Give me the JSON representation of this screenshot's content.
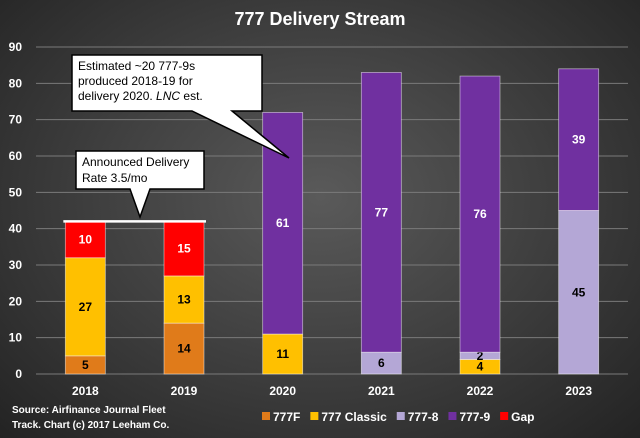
{
  "chart_data": {
    "type": "bar",
    "stacked": true,
    "title": "777 Delivery Stream",
    "categories": [
      "2018",
      "2019",
      "2020",
      "2021",
      "2022",
      "2023"
    ],
    "ylim": [
      0,
      90
    ],
    "yticks": [
      0,
      10,
      20,
      30,
      40,
      50,
      60,
      70,
      80,
      90
    ],
    "grid": true,
    "legend_position": "bottom",
    "series": [
      {
        "name": "777F",
        "color": "#e07b1a",
        "label_color": "#000000",
        "values": [
          5,
          14,
          0,
          0,
          0,
          0
        ]
      },
      {
        "name": "777 Classic",
        "color": "#ffc000",
        "label_color": "#000000",
        "values": [
          27,
          13,
          11,
          0,
          4,
          0
        ]
      },
      {
        "name": "777-8",
        "color": "#b4a7d6",
        "label_color": "#000000",
        "values": [
          0,
          0,
          0,
          6,
          2,
          45
        ]
      },
      {
        "name": "777-9",
        "color": "#7030a0",
        "label_color": "#ffffff",
        "values": [
          0,
          0,
          61,
          77,
          76,
          39
        ]
      },
      {
        "name": "Gap",
        "color": "#ff0000",
        "label_color": "#ffffff",
        "values": [
          10,
          15,
          0,
          0,
          0,
          0
        ]
      }
    ],
    "annotations": {
      "rate_box": {
        "lines": [
          "Announced Delivery",
          "Rate 3.5/mo"
        ]
      },
      "estimate_box": {
        "lines": [
          "Estimated ~20 777-9s",
          "produced 2018-19 for"
        ],
        "last_line_prefix": "delivery 2020. ",
        "last_line_italic": "LNC",
        "last_line_suffix": " est."
      },
      "rate_level": 42
    },
    "source": [
      "Source: Airfinance Journal Fleet",
      "Track. Chart (c) 2017 Leeham Co."
    ]
  }
}
